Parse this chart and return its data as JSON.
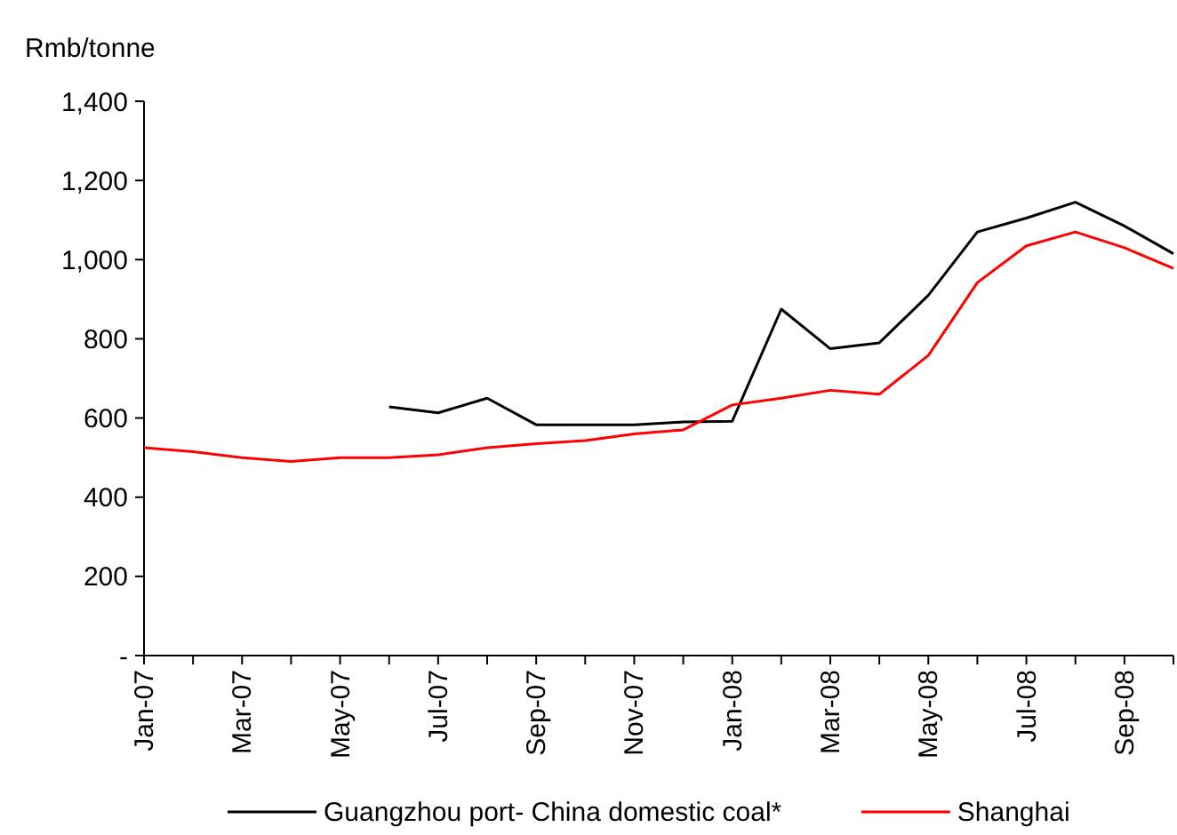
{
  "chart_data": {
    "type": "line",
    "ylabel": "Rmb/tonne",
    "categories": [
      "Jan-07",
      null,
      "Mar-07",
      null,
      "May-07",
      null,
      "Jul-07",
      null,
      "Sep-07",
      null,
      "Nov-07",
      null,
      "Jan-08",
      null,
      "Mar-08",
      null,
      "May-08",
      null,
      "Jul-08",
      null,
      "Sep-08",
      null
    ],
    "series": [
      {
        "name": "Guangzhou port- China domestic coal*",
        "color": "#000000",
        "values": [
          null,
          null,
          null,
          null,
          null,
          628,
          613,
          650,
          583,
          583,
          583,
          590,
          592,
          875,
          775,
          790,
          910,
          1070,
          1105,
          1145,
          1085,
          1015
        ]
      },
      {
        "name": "Shanghai",
        "color": "#ff0000",
        "values": [
          525,
          515,
          500,
          490,
          500,
          500,
          507,
          525,
          535,
          543,
          560,
          570,
          633,
          650,
          670,
          660,
          758,
          942,
          1035,
          1070,
          1030,
          978
        ]
      }
    ],
    "ylim": [
      0,
      1400
    ],
    "yticks": [
      {
        "value": 0,
        "label": "-"
      },
      {
        "value": 200,
        "label": "200"
      },
      {
        "value": 400,
        "label": "400"
      },
      {
        "value": 600,
        "label": "600"
      },
      {
        "value": 800,
        "label": "800"
      },
      {
        "value": 1000,
        "label": "1,000"
      },
      {
        "value": 1200,
        "label": "1,200"
      },
      {
        "value": 1400,
        "label": "1,400"
      }
    ],
    "legend": "bottom",
    "grid": false,
    "marker": "none",
    "line_style": "solid"
  }
}
